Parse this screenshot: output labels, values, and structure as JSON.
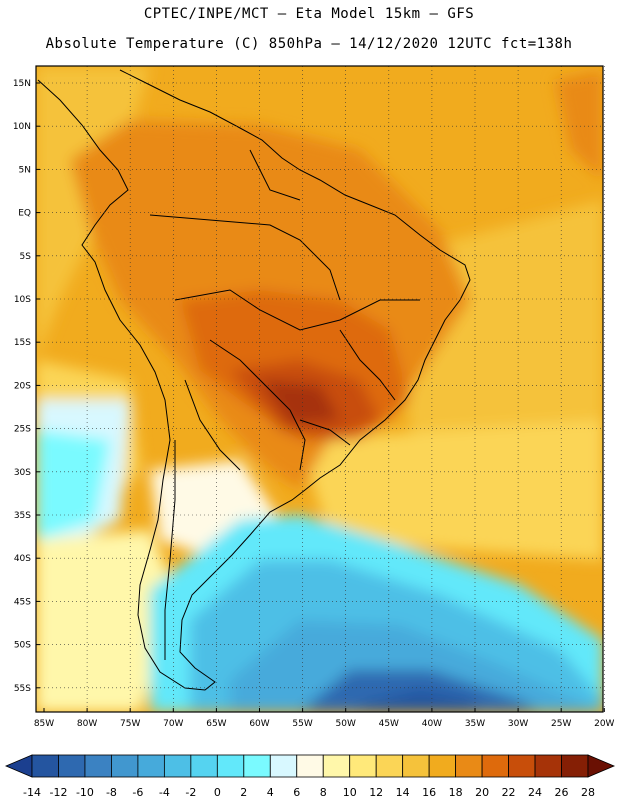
{
  "header": {
    "line1": "CPTEC/INPE/MCT –  Eta Model 15km – GFS",
    "line2": "Absolute Temperature (C) 850hPa – 14/12/2020 12UTC fct=138h"
  },
  "map": {
    "lat_labels": [
      "15N",
      "10N",
      "5N",
      "EQ",
      "5S",
      "10S",
      "15S",
      "20S",
      "25S",
      "30S",
      "35S",
      "40S",
      "45S",
      "50S",
      "55S"
    ],
    "lon_labels": [
      "85W",
      "80W",
      "75W",
      "70W",
      "65W",
      "60W",
      "55W",
      "50W",
      "45W",
      "40W",
      "35W",
      "30W",
      "25W",
      "20W"
    ]
  },
  "colorbar": {
    "labels": [
      "-14",
      "-12",
      "-10",
      "-8",
      "-6",
      "-4",
      "-2",
      "0",
      "2",
      "4",
      "6",
      "8",
      "10",
      "12",
      "14",
      "16",
      "18",
      "20",
      "22",
      "24",
      "26",
      "28"
    ],
    "colors": [
      "#1b3f8f",
      "#2455a0",
      "#2e69b0",
      "#3b82c2",
      "#4197cf",
      "#46aadb",
      "#4dbfe6",
      "#55d3f0",
      "#62e8fa",
      "#7afaff",
      "#d8f8ff",
      "#fffae6",
      "#fff7aa",
      "#ffe97a",
      "#fbd556",
      "#f5c23b",
      "#f1ab1e",
      "#e98a16",
      "#de6a0c",
      "#c84e0a",
      "#a63308",
      "#851f05",
      "#6a1003"
    ]
  }
}
